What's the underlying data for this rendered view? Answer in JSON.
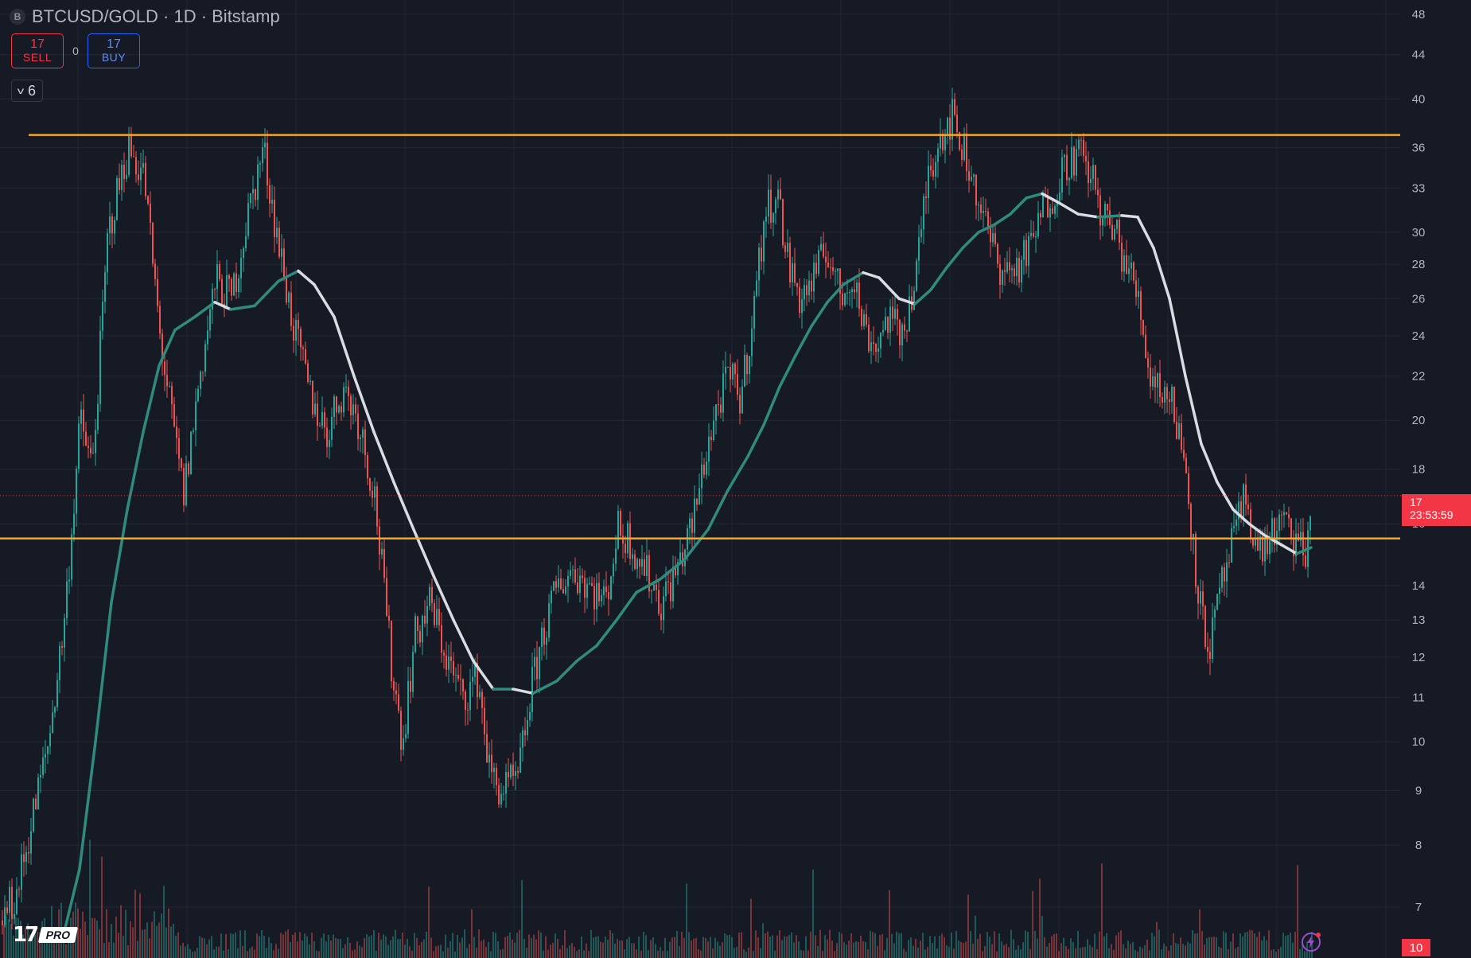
{
  "header": {
    "exchange_icon": "B",
    "title": "BTCUSD/GOLD · 1D · Bitstamp"
  },
  "trade": {
    "sell_price": "17",
    "sell_label": "SELL",
    "spread": "0",
    "buy_price": "17",
    "buy_label": "BUY"
  },
  "indicators": {
    "count": "6"
  },
  "branding": {
    "logo_mark": "17",
    "logo_suffix": "PRO"
  },
  "last_price": {
    "value": "17",
    "countdown": "23:53:59"
  },
  "volume_tag": "10",
  "colors": {
    "background": "#161a25",
    "grid": "#232734",
    "up": "#26a69a",
    "down": "#ef5350",
    "level_lines": "#f5a623",
    "ma_rising": "#2e8b7d",
    "ma_falling": "#d9dce3",
    "last_price_tag": "#f23645"
  },
  "chart_data": {
    "type": "candlestick",
    "title": "BTCUSD/GOLD · 1D · Bitstamp",
    "y_scale": "log",
    "ylim": [
      6.6,
      49
    ],
    "y_ticks": [
      7,
      8,
      9,
      10,
      11,
      12,
      13,
      14,
      16,
      18,
      20,
      22,
      24,
      26,
      28,
      30,
      33,
      36,
      40,
      44,
      48
    ],
    "grid": true,
    "price_path": [
      [
        0,
        6.8
      ],
      [
        20,
        7.2
      ],
      [
        40,
        8.5
      ],
      [
        60,
        10.0
      ],
      [
        80,
        13.0
      ],
      [
        100,
        20.0
      ],
      [
        115,
        18.0
      ],
      [
        135,
        30.0
      ],
      [
        160,
        36.0
      ],
      [
        180,
        34.0
      ],
      [
        200,
        24.0
      ],
      [
        215,
        20.0
      ],
      [
        230,
        17.0
      ],
      [
        250,
        22.0
      ],
      [
        270,
        27.0
      ],
      [
        290,
        26.0
      ],
      [
        310,
        31.0
      ],
      [
        330,
        36.0
      ],
      [
        350,
        29.0
      ],
      [
        370,
        24.0
      ],
      [
        390,
        21.0
      ],
      [
        410,
        19.5
      ],
      [
        430,
        21.5
      ],
      [
        450,
        20.0
      ],
      [
        470,
        17.0
      ],
      [
        490,
        12.0
      ],
      [
        505,
        10.0
      ],
      [
        520,
        12.5
      ],
      [
        540,
        13.5
      ],
      [
        560,
        12.0
      ],
      [
        580,
        11.0
      ],
      [
        600,
        11.5
      ],
      [
        615,
        9.3
      ],
      [
        630,
        9.0
      ],
      [
        650,
        9.2
      ],
      [
        665,
        11.0
      ],
      [
        680,
        12.5
      ],
      [
        700,
        14.0
      ],
      [
        720,
        14.5
      ],
      [
        740,
        14.0
      ],
      [
        760,
        13.5
      ],
      [
        775,
        15.8
      ],
      [
        790,
        15.5
      ],
      [
        810,
        14.5
      ],
      [
        830,
        13.5
      ],
      [
        850,
        14.5
      ],
      [
        870,
        16.0
      ],
      [
        885,
        18.5
      ],
      [
        900,
        20.5
      ],
      [
        915,
        22.0
      ],
      [
        930,
        21.0
      ],
      [
        945,
        25.0
      ],
      [
        960,
        31.0
      ],
      [
        975,
        33.0
      ],
      [
        990,
        28.0
      ],
      [
        1005,
        26.0
      ],
      [
        1020,
        27.0
      ],
      [
        1040,
        29.0
      ],
      [
        1055,
        26.0
      ],
      [
        1070,
        27.5
      ],
      [
        1085,
        24.5
      ],
      [
        1100,
        23.5
      ],
      [
        1115,
        25.0
      ],
      [
        1130,
        24.0
      ],
      [
        1150,
        27.0
      ],
      [
        1165,
        34.0
      ],
      [
        1180,
        37.0
      ],
      [
        1195,
        38.5
      ],
      [
        1210,
        36.0
      ],
      [
        1225,
        33.0
      ],
      [
        1240,
        30.0
      ],
      [
        1255,
        28.0
      ],
      [
        1270,
        27.5
      ],
      [
        1290,
        28.5
      ],
      [
        1310,
        31.5
      ],
      [
        1325,
        33.0
      ],
      [
        1340,
        35.0
      ],
      [
        1355,
        35.5
      ],
      [
        1370,
        34.0
      ],
      [
        1385,
        31.0
      ],
      [
        1400,
        30.0
      ],
      [
        1415,
        28.0
      ],
      [
        1430,
        26.0
      ],
      [
        1445,
        22.0
      ],
      [
        1460,
        21.5
      ],
      [
        1475,
        20.5
      ],
      [
        1490,
        18.0
      ],
      [
        1500,
        15.0
      ],
      [
        1510,
        13.0
      ],
      [
        1520,
        12.3
      ],
      [
        1535,
        14.0
      ],
      [
        1550,
        15.5
      ],
      [
        1565,
        17.0
      ],
      [
        1580,
        15.0
      ],
      [
        1595,
        15.5
      ],
      [
        1610,
        16.0
      ],
      [
        1625,
        15.5
      ],
      [
        1640,
        15.0
      ],
      [
        1648,
        17.0
      ]
    ],
    "moving_average": [
      [
        80,
        6.6
      ],
      [
        100,
        7.6
      ],
      [
        120,
        10.0
      ],
      [
        140,
        13.5
      ],
      [
        160,
        16.5
      ],
      [
        180,
        19.5
      ],
      [
        200,
        22.5
      ],
      [
        220,
        24.3
      ],
      [
        245,
        25.0
      ],
      [
        270,
        25.8
      ],
      [
        290,
        25.4
      ],
      [
        320,
        25.6
      ],
      [
        350,
        27.0
      ],
      [
        375,
        27.6
      ],
      [
        395,
        26.8
      ],
      [
        420,
        25.0
      ],
      [
        445,
        22.0
      ],
      [
        470,
        19.5
      ],
      [
        495,
        17.5
      ],
      [
        520,
        15.8
      ],
      [
        545,
        14.3
      ],
      [
        570,
        13.0
      ],
      [
        595,
        11.9
      ],
      [
        620,
        11.2
      ],
      [
        645,
        11.2
      ],
      [
        670,
        11.1
      ],
      [
        700,
        11.4
      ],
      [
        725,
        11.9
      ],
      [
        750,
        12.3
      ],
      [
        775,
        13.0
      ],
      [
        800,
        13.8
      ],
      [
        830,
        14.2
      ],
      [
        860,
        14.8
      ],
      [
        890,
        15.8
      ],
      [
        915,
        17.2
      ],
      [
        940,
        18.5
      ],
      [
        960,
        19.8
      ],
      [
        980,
        21.5
      ],
      [
        1000,
        23.0
      ],
      [
        1020,
        24.5
      ],
      [
        1040,
        25.8
      ],
      [
        1060,
        26.8
      ],
      [
        1085,
        27.5
      ],
      [
        1105,
        27.2
      ],
      [
        1130,
        26.0
      ],
      [
        1150,
        25.7
      ],
      [
        1170,
        26.5
      ],
      [
        1190,
        27.8
      ],
      [
        1210,
        29.0
      ],
      [
        1230,
        30.0
      ],
      [
        1250,
        30.5
      ],
      [
        1270,
        31.2
      ],
      [
        1290,
        32.3
      ],
      [
        1310,
        32.6
      ],
      [
        1330,
        32.0
      ],
      [
        1355,
        31.2
      ],
      [
        1380,
        31.0
      ],
      [
        1410,
        31.1
      ],
      [
        1430,
        31.0
      ],
      [
        1450,
        29.0
      ],
      [
        1470,
        26.0
      ],
      [
        1490,
        22.0
      ],
      [
        1510,
        19.0
      ],
      [
        1530,
        17.5
      ],
      [
        1550,
        16.5
      ],
      [
        1570,
        16.0
      ],
      [
        1590,
        15.6
      ],
      [
        1610,
        15.3
      ],
      [
        1630,
        15.0
      ],
      [
        1648,
        15.2
      ]
    ],
    "horizontal_levels": [
      37,
      15.5
    ],
    "last_price": 17
  }
}
